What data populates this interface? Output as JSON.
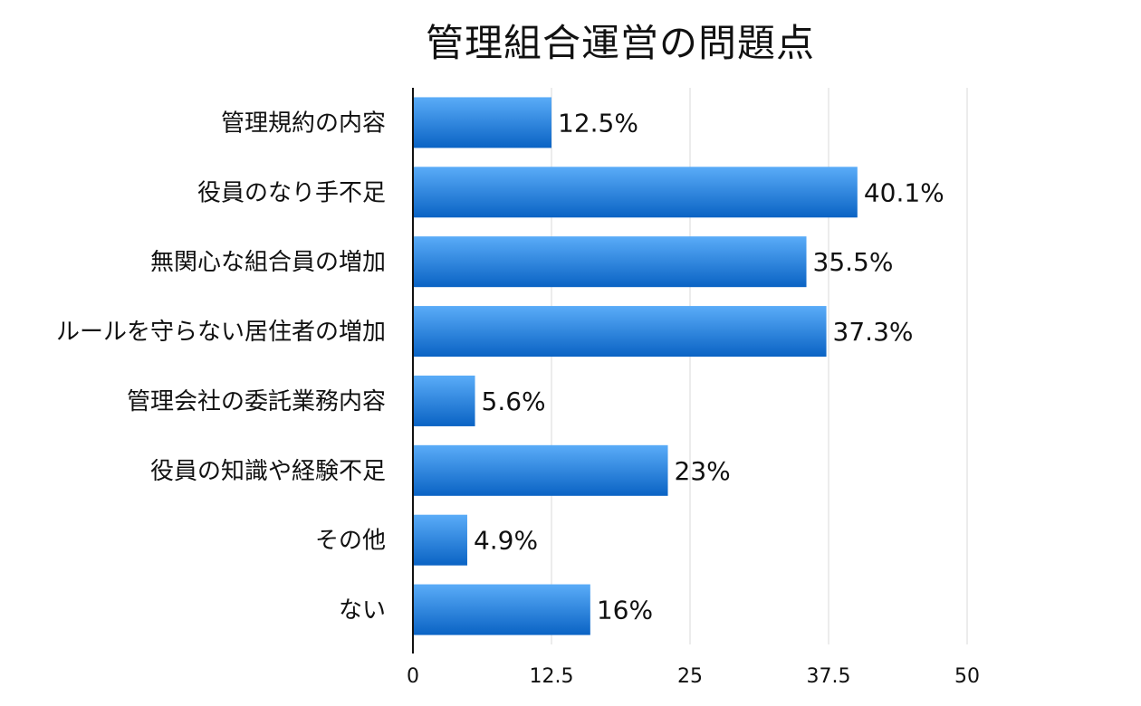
{
  "chart_data": {
    "type": "bar",
    "orientation": "horizontal",
    "title": "管理組合運営の問題点",
    "categories": [
      "管理規約の内容",
      "役員のなり手不足",
      "無関心な組合員の増加",
      "ルールを守らない居住者の増加",
      "管理会社の委託業務内容",
      "役員の知識や経験不足",
      "その他",
      "ない"
    ],
    "values": [
      12.5,
      40.1,
      35.5,
      37.3,
      5.6,
      23,
      4.9,
      16
    ],
    "value_labels": [
      "12.5%",
      "40.1%",
      "35.5%",
      "37.3%",
      "5.6%",
      "23%",
      "4.9%",
      "16%"
    ],
    "x_ticks": [
      "0",
      "12.5",
      "25",
      "37.5",
      "50"
    ],
    "xlim": [
      0,
      50
    ],
    "xlabel": "",
    "ylabel": "",
    "grid": true,
    "bar_color_top": "#5aacf8",
    "bar_color_bottom": "#0a63c4"
  }
}
